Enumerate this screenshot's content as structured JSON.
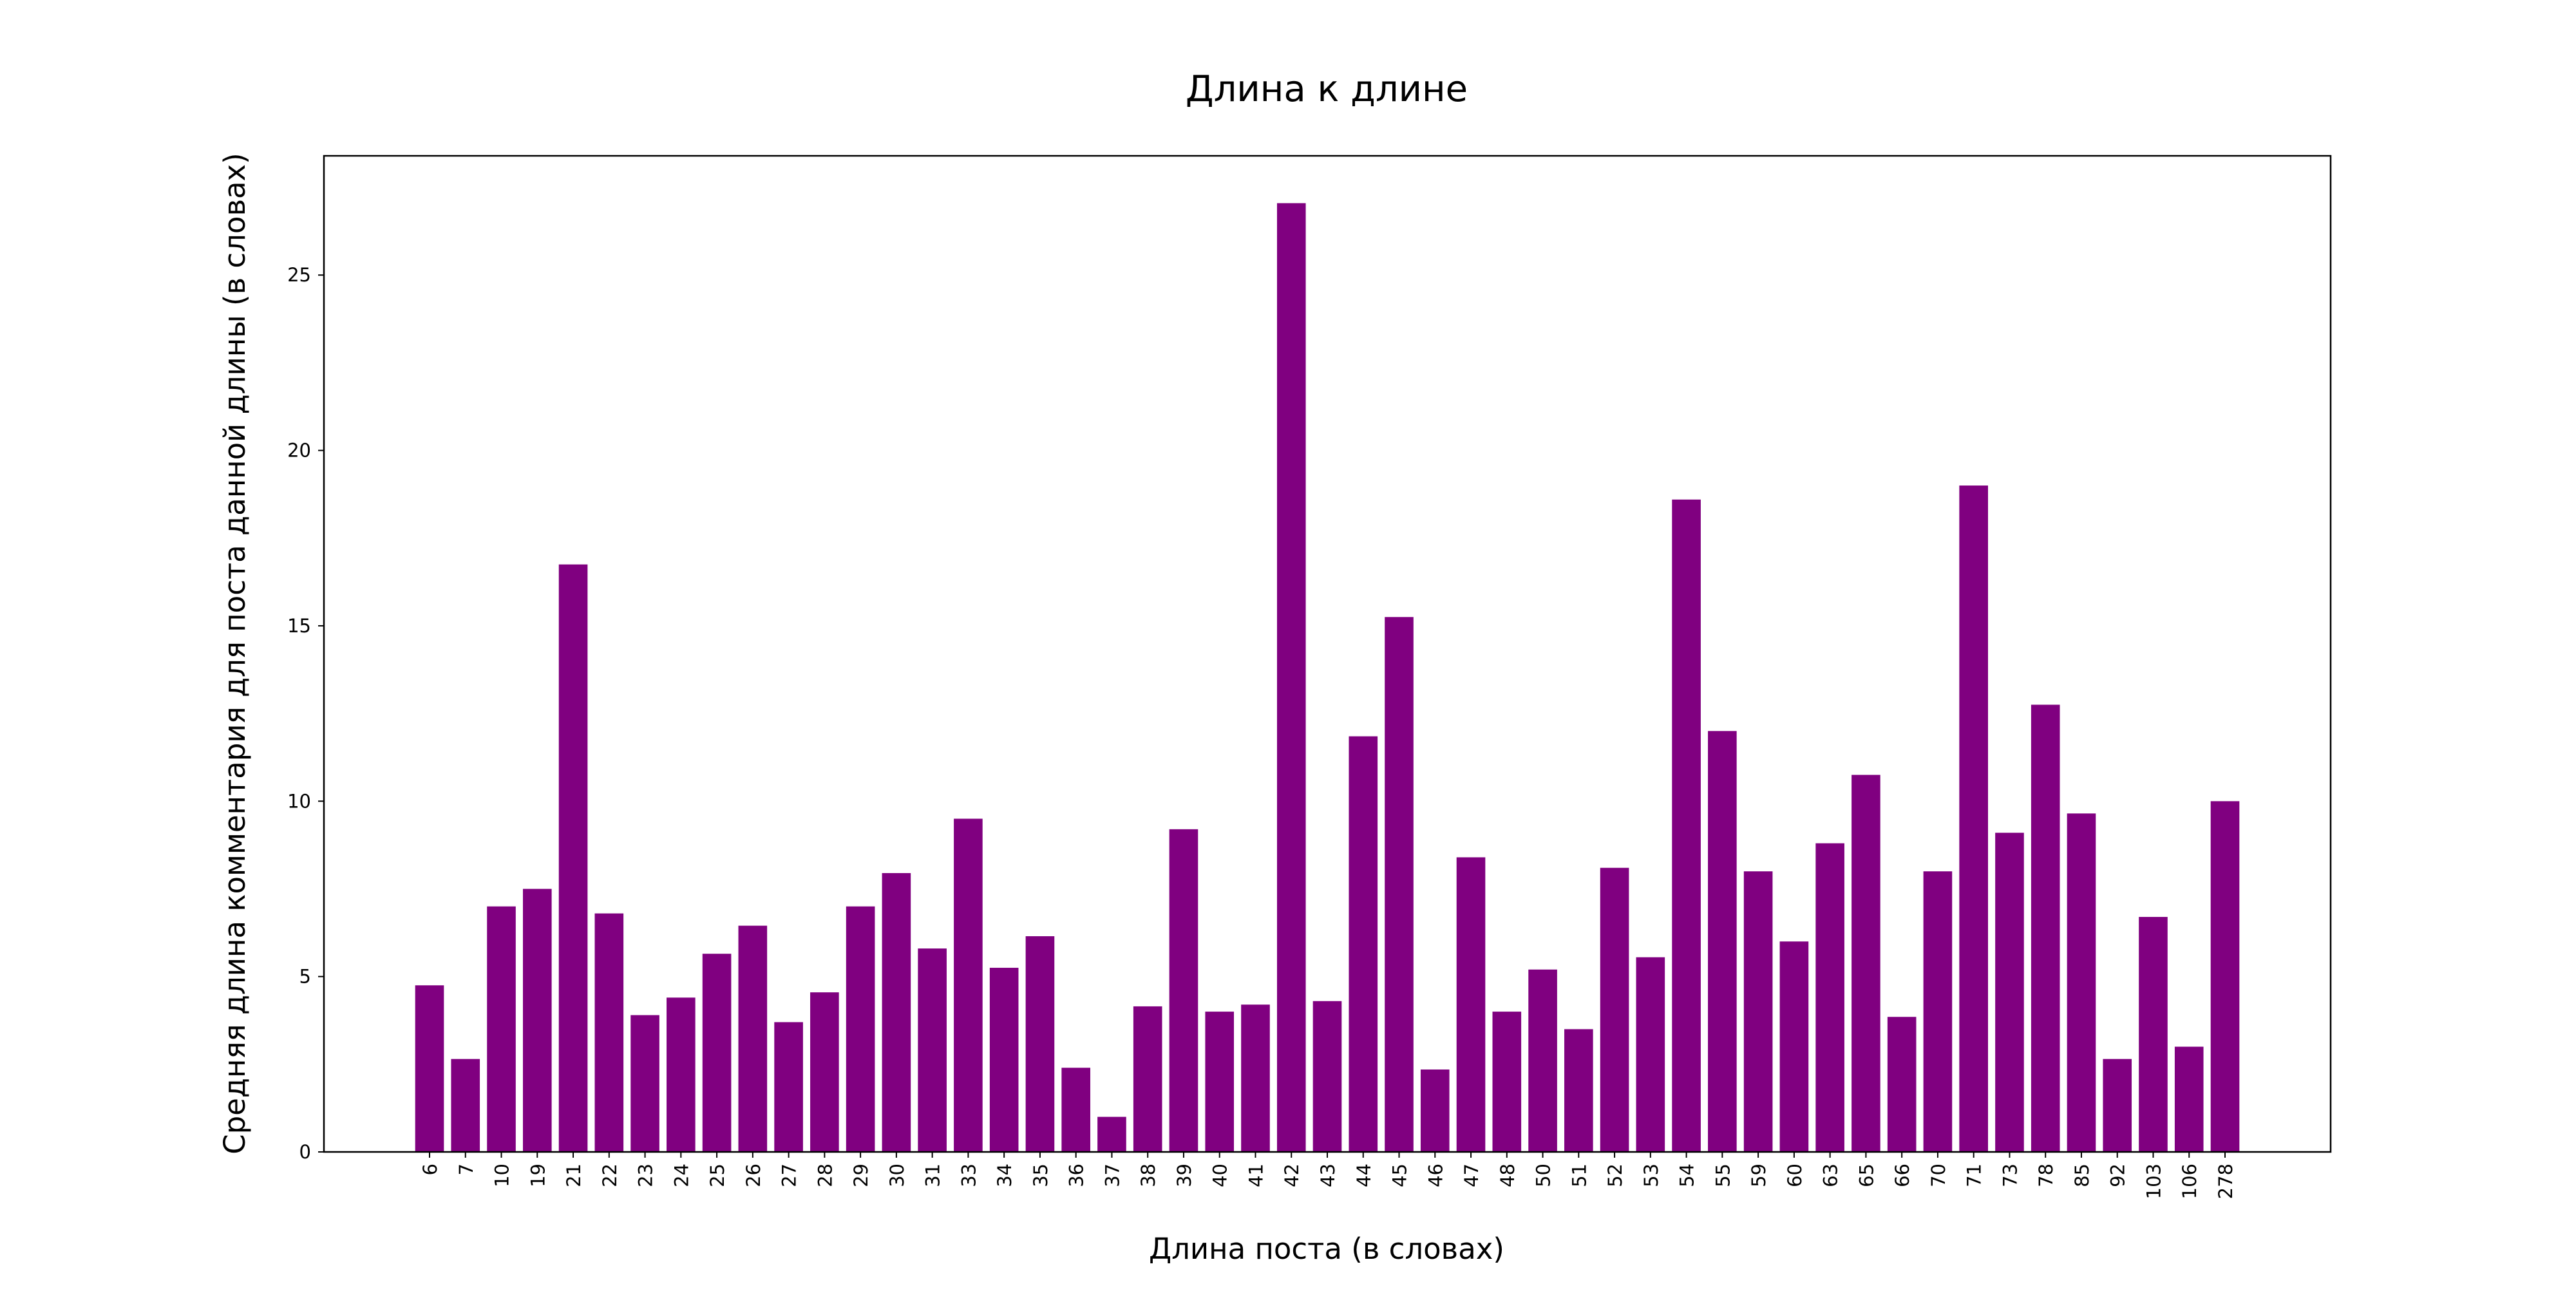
{
  "chart_data": {
    "type": "bar",
    "title": "Длина к длине",
    "xlabel": "Длина поста (в словах)",
    "ylabel": "Средняя длина комментария для поста данной длины (в словах)",
    "ylim": [
      0,
      28.4
    ],
    "yticks": [
      0,
      5,
      10,
      15,
      20,
      25
    ],
    "grid": false,
    "bar_color": "#800080",
    "categories": [
      "6",
      "7",
      "10",
      "19",
      "21",
      "22",
      "23",
      "24",
      "25",
      "26",
      "27",
      "28",
      "29",
      "30",
      "31",
      "33",
      "34",
      "35",
      "36",
      "37",
      "38",
      "39",
      "40",
      "41",
      "42",
      "43",
      "44",
      "45",
      "46",
      "47",
      "48",
      "50",
      "51",
      "52",
      "53",
      "54",
      "55",
      "59",
      "60",
      "63",
      "65",
      "66",
      "70",
      "71",
      "73",
      "78",
      "85",
      "92",
      "103",
      "106",
      "278"
    ],
    "values": [
      4.75,
      2.65,
      7.0,
      7.5,
      16.75,
      6.8,
      3.9,
      4.4,
      5.65,
      6.45,
      3.7,
      4.55,
      7.0,
      7.95,
      5.8,
      9.5,
      5.25,
      6.15,
      2.4,
      1.0,
      4.15,
      9.2,
      4.0,
      4.2,
      27.05,
      4.3,
      11.85,
      15.25,
      2.35,
      8.4,
      4.0,
      5.2,
      3.5,
      8.1,
      5.55,
      18.6,
      12.0,
      8.0,
      6.0,
      8.8,
      10.75,
      3.85,
      8.0,
      19.0,
      9.1,
      12.75,
      9.65,
      2.65,
      6.7,
      3.0,
      10.0
    ]
  }
}
